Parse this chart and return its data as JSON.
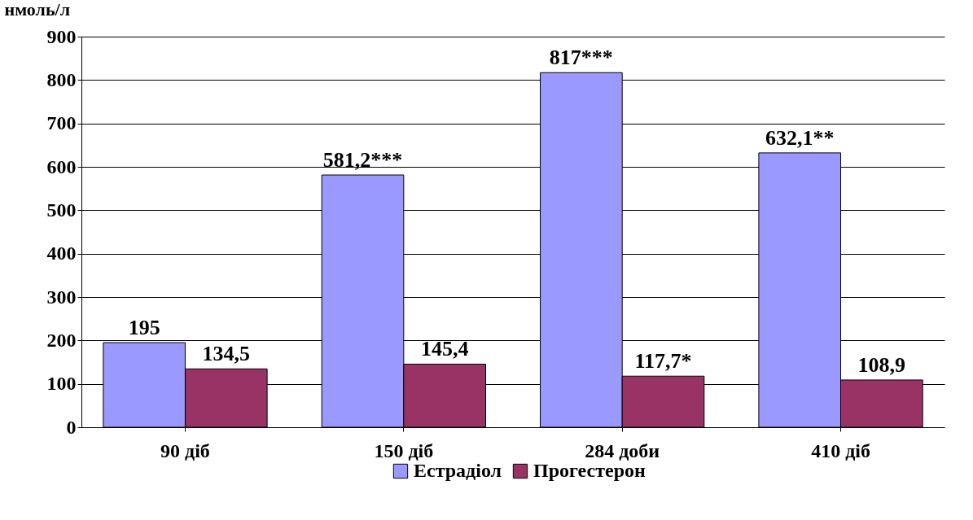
{
  "chart_data": {
    "type": "bar",
    "ylabel": "нмоль/л",
    "categories": [
      "90 діб",
      "150 діб",
      "284 доби",
      "410 діб"
    ],
    "series": [
      {
        "name": "Естрадіол",
        "color": "#9999ff",
        "values": [
          195,
          581.2,
          817,
          632.1
        ],
        "value_labels": [
          "195",
          "581,2***",
          "817***",
          "632,1**"
        ]
      },
      {
        "name": "Прогестерон",
        "color": "#993366",
        "values": [
          134.5,
          145.4,
          117.7,
          108.9
        ],
        "value_labels": [
          "134,5",
          "145,4",
          "117,7*",
          "108,9"
        ]
      }
    ],
    "ylim": [
      0,
      900
    ],
    "yticks": [
      0,
      100,
      200,
      300,
      400,
      500,
      600,
      700,
      800,
      900
    ],
    "grid": "y",
    "legend": "bottom"
  }
}
